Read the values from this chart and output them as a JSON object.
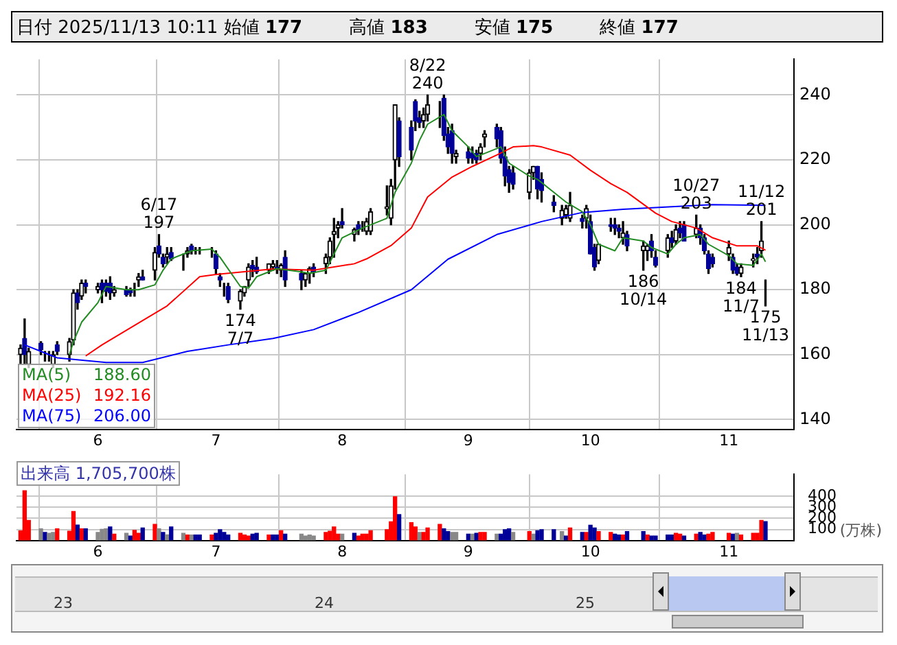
{
  "chart_data": [
    {
      "type": "candlestick",
      "title": "日付 2025/11/13 10:11 始値 177 高値 183 安値 175 終値 177",
      "x": [
        "2025-05-14",
        "2025-05-15",
        "2025-05-16",
        "2025-05-19",
        "2025-05-20",
        "2025-05-21",
        "2025-05-22",
        "2025-05-23",
        "2025-05-26",
        "2025-05-27",
        "2025-05-28",
        "2025-05-29",
        "2025-05-30",
        "2025-06-02",
        "2025-06-03",
        "2025-06-04",
        "2025-06-05",
        "2025-06-06",
        "2025-06-09",
        "2025-06-10",
        "2025-06-11",
        "2025-06-12",
        "2025-06-13",
        "2025-06-16",
        "2025-06-17",
        "2025-06-18",
        "2025-06-19",
        "2025-06-20",
        "2025-06-23",
        "2025-06-24",
        "2025-06-25",
        "2025-06-26",
        "2025-06-27",
        "2025-06-30",
        "2025-07-01",
        "2025-07-02",
        "2025-07-03",
        "2025-07-04",
        "2025-07-07",
        "2025-07-08",
        "2025-07-09",
        "2025-07-10",
        "2025-07-11",
        "2025-07-14",
        "2025-07-15",
        "2025-07-16",
        "2025-07-17",
        "2025-07-18",
        "2025-07-22",
        "2025-07-23",
        "2025-07-24",
        "2025-07-25",
        "2025-07-28",
        "2025-07-29",
        "2025-07-30",
        "2025-07-31",
        "2025-08-01",
        "2025-08-04",
        "2025-08-05",
        "2025-08-06",
        "2025-08-07",
        "2025-08-08",
        "2025-08-12",
        "2025-08-13",
        "2025-08-14",
        "2025-08-15",
        "2025-08-18",
        "2025-08-19",
        "2025-08-20",
        "2025-08-21",
        "2025-08-22",
        "2025-08-25",
        "2025-08-26",
        "2025-08-27",
        "2025-08-28",
        "2025-08-29",
        "2025-09-01",
        "2025-09-02",
        "2025-09-03",
        "2025-09-04",
        "2025-09-05",
        "2025-09-08",
        "2025-09-09",
        "2025-09-10",
        "2025-09-11",
        "2025-09-12",
        "2025-09-16",
        "2025-09-17",
        "2025-09-18",
        "2025-09-19",
        "2025-09-22",
        "2025-09-24",
        "2025-09-25",
        "2025-09-26",
        "2025-09-29",
        "2025-09-30",
        "2025-10-01",
        "2025-10-02",
        "2025-10-03",
        "2025-10-06",
        "2025-10-07",
        "2025-10-08",
        "2025-10-09",
        "2025-10-10",
        "2025-10-14",
        "2025-10-15",
        "2025-10-16",
        "2025-10-17",
        "2025-10-20",
        "2025-10-21",
        "2025-10-22",
        "2025-10-23",
        "2025-10-24",
        "2025-10-27",
        "2025-10-28",
        "2025-10-29",
        "2025-10-30",
        "2025-10-31",
        "2025-11-04",
        "2025-11-05",
        "2025-11-06",
        "2025-11-07",
        "2025-11-10",
        "2025-11-11",
        "2025-11-12",
        "2025-11-13"
      ],
      "ohlc": [
        [
          160,
          163,
          157,
          162
        ],
        [
          165,
          171,
          157,
          160
        ],
        [
          157,
          162,
          156,
          161
        ],
        [
          163.5,
          164,
          160,
          161.5
        ],
        [
          160,
          161,
          158,
          160
        ],
        [
          160,
          161,
          158,
          160
        ],
        [
          157,
          161,
          156,
          160
        ],
        [
          163,
          164,
          160,
          161
        ],
        [
          160,
          165,
          158,
          164
        ],
        [
          164.5,
          180,
          163,
          179
        ],
        [
          179,
          180,
          174,
          176
        ],
        [
          178,
          183,
          177,
          182
        ],
        [
          182,
          183,
          179,
          181
        ],
        [
          180,
          182,
          179,
          181
        ],
        [
          182,
          183,
          176,
          180
        ],
        [
          182,
          183,
          178,
          179.5
        ],
        [
          182,
          184,
          177,
          179
        ],
        [
          179,
          181,
          178,
          180
        ],
        [
          180,
          181,
          178,
          178.5
        ],
        [
          180,
          180.5,
          178,
          179
        ],
        [
          180,
          182,
          178,
          180
        ],
        [
          183,
          185,
          181,
          184
        ],
        [
          184,
          186,
          183,
          183
        ],
        [
          186,
          193,
          183,
          191.5
        ],
        [
          193.5,
          197,
          190,
          191
        ],
        [
          190,
          191,
          187,
          188
        ],
        [
          190,
          193,
          188,
          191
        ],
        [
          191.5,
          193,
          189,
          189.5
        ],
        [
          190,
          191,
          186,
          190
        ],
        [
          191,
          193,
          190,
          192
        ],
        [
          193.5,
          194,
          191,
          192
        ],
        [
          192,
          193,
          191,
          192
        ],
        [
          192,
          193,
          191,
          192
        ],
        [
          192,
          193,
          190,
          192
        ],
        [
          191,
          192,
          185,
          186.5
        ],
        [
          184,
          185,
          181,
          183
        ],
        [
          180,
          182,
          178,
          180
        ],
        [
          181,
          182,
          176,
          177
        ],
        [
          176.5,
          180,
          174,
          179.5
        ],
        [
          179,
          181,
          178,
          181
        ],
        [
          183,
          188,
          181,
          187
        ],
        [
          187.5,
          189,
          184,
          186.5
        ],
        [
          187,
          190,
          185,
          185.5
        ],
        [
          186,
          188,
          185,
          188
        ],
        [
          187,
          189,
          186,
          188
        ],
        [
          187,
          189,
          185,
          186.5
        ],
        [
          186,
          188,
          184,
          187.5
        ],
        [
          190,
          192,
          181,
          183
        ],
        [
          185,
          186,
          180,
          183
        ],
        [
          183,
          185,
          181,
          185
        ],
        [
          185,
          187,
          182,
          186.5
        ],
        [
          187,
          188,
          184,
          185.5
        ],
        [
          188,
          191,
          185,
          190
        ],
        [
          190,
          196,
          188,
          195
        ],
        [
          197,
          202,
          190,
          198
        ],
        [
          199,
          201,
          196,
          200
        ],
        [
          201,
          205,
          199,
          200
        ],
        [
          197,
          199,
          195,
          198.5
        ],
        [
          200,
          201,
          197,
          198.5
        ],
        [
          200,
          201,
          198,
          200
        ],
        [
          198,
          202,
          197,
          201
        ],
        [
          198,
          205,
          197,
          204
        ],
        [
          205,
          212,
          203,
          205.5
        ],
        [
          202,
          214,
          200,
          212
        ],
        [
          220,
          237,
          211,
          237
        ],
        [
          232,
          233,
          218,
          221
        ],
        [
          230,
          232,
          220,
          223
        ],
        [
          238,
          238.5,
          229,
          232
        ],
        [
          233,
          235,
          230,
          231.5
        ],
        [
          232,
          236,
          230,
          234
        ],
        [
          234,
          240,
          232,
          237
        ],
        [
          236,
          238,
          230,
          236
        ],
        [
          239,
          240,
          226,
          227.5
        ],
        [
          228,
          230,
          222,
          224
        ],
        [
          229,
          231,
          219,
          222
        ],
        [
          221,
          223,
          219,
          222
        ],
        [
          222.5,
          224,
          219,
          220.5
        ],
        [
          222,
          224,
          219,
          220.5
        ],
        [
          222,
          223,
          219,
          220
        ],
        [
          222,
          225,
          220,
          224
        ],
        [
          227,
          229,
          224,
          228
        ],
        [
          230,
          231,
          224,
          226.5
        ],
        [
          229,
          230,
          219,
          220.5
        ],
        [
          221,
          224,
          212,
          215
        ],
        [
          217,
          218,
          210,
          213
        ],
        [
          216,
          218,
          211,
          212.5
        ],
        [
          210,
          217,
          208,
          216
        ],
        [
          216,
          218,
          214,
          218
        ],
        [
          218,
          218,
          208,
          211
        ],
        [
          214,
          216,
          207,
          210.5
        ],
        [
          207,
          209,
          204,
          206
        ],
        [
          202,
          206,
          200,
          204.5
        ],
        [
          203,
          206,
          202,
          205
        ],
        [
          202,
          210,
          201,
          206
        ],
        [
          202,
          203,
          199,
          201
        ],
        [
          202,
          206,
          199,
          205
        ],
        [
          201,
          203,
          191,
          191
        ],
        [
          193,
          194,
          186,
          187
        ],
        [
          189,
          194,
          188,
          194
        ],
        [
          200,
          202,
          198,
          199.5
        ],
        [
          200,
          202,
          197,
          199
        ],
        [
          199,
          200,
          196,
          198
        ],
        [
          196,
          201,
          194,
          197.5
        ],
        [
          197,
          198,
          192,
          193.5
        ],
        [
          192,
          195,
          186,
          193.5
        ],
        [
          192,
          194,
          189,
          193.5
        ],
        [
          195,
          197,
          190,
          192
        ],
        [
          190,
          192,
          187,
          187.5
        ],
        [
          192,
          197,
          190,
          196
        ],
        [
          196,
          198,
          193,
          194.5
        ],
        [
          195,
          200,
          194,
          198.5
        ],
        [
          199,
          201,
          196,
          197.5
        ],
        [
          200,
          201,
          195,
          195
        ],
        [
          197,
          203,
          196,
          199
        ],
        [
          199,
          200,
          194,
          196
        ],
        [
          196,
          197,
          191,
          192
        ],
        [
          191,
          192,
          185,
          186.5
        ],
        [
          190,
          191,
          187,
          188
        ],
        [
          191,
          195,
          189,
          193
        ],
        [
          190,
          191,
          185,
          186
        ],
        [
          187,
          188,
          184.5,
          185
        ],
        [
          185,
          188,
          184,
          187
        ],
        [
          189,
          191,
          187,
          189.5
        ],
        [
          191,
          193,
          188,
          190
        ],
        [
          192,
          201,
          190,
          195
        ],
        [
          177,
          183,
          175,
          177
        ]
      ],
      "series": [
        {
          "name": "MA(5) 188.60",
          "type": "line",
          "color": "#228b22",
          "x": [
            "2025-05-26",
            "2025-05-27",
            "2025-05-29",
            "2025-06-02",
            "2025-06-04",
            "2025-06-09",
            "2025-06-12",
            "2025-06-16",
            "2025-06-18",
            "2025-06-20",
            "2025-06-25",
            "2025-06-30",
            "2025-07-02",
            "2025-07-07",
            "2025-07-09",
            "2025-07-11",
            "2025-07-16",
            "2025-07-22",
            "2025-07-24",
            "2025-07-28",
            "2025-07-30",
            "2025-08-01",
            "2025-08-06",
            "2025-08-12",
            "2025-08-14",
            "2025-08-18",
            "2025-08-20",
            "2025-08-22",
            "2025-08-26",
            "2025-08-28",
            "2025-09-01",
            "2025-09-03",
            "2025-09-05",
            "2025-09-09",
            "2025-09-11",
            "2025-09-16",
            "2025-09-18",
            "2025-09-22",
            "2025-09-25",
            "2025-09-29",
            "2025-10-01",
            "2025-10-03",
            "2025-10-07",
            "2025-10-09",
            "2025-10-14",
            "2025-10-16",
            "2025-10-20",
            "2025-10-22",
            "2025-10-24",
            "2025-10-28",
            "2025-10-30",
            "2025-11-04",
            "2025-11-06",
            "2025-11-10",
            "2025-11-12",
            "2025-11-13"
          ],
          "values": [
            160,
            164,
            170,
            176,
            181,
            180,
            180,
            181.5,
            186,
            189.5,
            192,
            192.5,
            190,
            181,
            180.5,
            184,
            186.5,
            185.5,
            185,
            186,
            191,
            196,
            199,
            202,
            210,
            219,
            226,
            231,
            234,
            229,
            224,
            221,
            222,
            224,
            219,
            215,
            214,
            210,
            207,
            204,
            200,
            194,
            192,
            196,
            195,
            193,
            191,
            194,
            196,
            197,
            194,
            190.5,
            188,
            187.5,
            191,
            188.6
          ]
        },
        {
          "name": "MA(25) 192.16",
          "type": "line",
          "color": "#ff0000",
          "x": [
            "2025-05-30",
            "2025-06-03",
            "2025-06-13",
            "2025-06-19",
            "2025-06-27",
            "2025-07-01",
            "2025-07-15",
            "2025-07-25",
            "2025-08-04",
            "2025-08-07",
            "2025-08-13",
            "2025-08-18",
            "2025-08-22",
            "2025-08-28",
            "2025-09-02",
            "2025-09-08",
            "2025-09-12",
            "2025-09-17",
            "2025-09-19",
            "2025-09-26",
            "2025-10-01",
            "2025-10-06",
            "2025-10-10",
            "2025-10-17",
            "2025-10-21",
            "2025-10-27",
            "2025-10-31",
            "2025-11-06",
            "2025-11-11",
            "2025-11-13"
          ],
          "values": [
            159.6,
            163,
            170.5,
            175,
            184,
            184.7,
            186.4,
            186,
            188,
            189.5,
            193.6,
            199,
            208.6,
            214.7,
            218,
            221.5,
            224,
            224.4,
            224,
            221.5,
            216.8,
            212.7,
            210,
            203.6,
            201,
            199,
            196,
            193.5,
            193.5,
            192.16
          ]
        },
        {
          "name": "MA(75) 206.00",
          "type": "line",
          "color": "#0000ff",
          "x": [
            "2025-05-15",
            "2025-05-23",
            "2025-06-04",
            "2025-06-13",
            "2025-06-24",
            "2025-07-04",
            "2025-07-15",
            "2025-07-25",
            "2025-08-05",
            "2025-08-18",
            "2025-08-27",
            "2025-09-08",
            "2025-09-19",
            "2025-09-29",
            "2025-10-09",
            "2025-10-21",
            "2025-10-31",
            "2025-11-13"
          ],
          "values": [
            163,
            159,
            157.6,
            157.6,
            161,
            163,
            165,
            167.7,
            173,
            180,
            189.4,
            197,
            201,
            203.8,
            204.8,
            205.6,
            206.2,
            206
          ]
        }
      ],
      "xlim": [
        "2025-05-13",
        "2025-11-20"
      ],
      "ylim": [
        137,
        251
      ],
      "yticks": [
        140,
        160,
        180,
        200,
        220,
        240
      ],
      "xticks": [
        {
          "value": "2025-06-02",
          "label": "6"
        },
        {
          "value": "2025-07-01",
          "label": "7"
        },
        {
          "value": "2025-08-01",
          "label": "8"
        },
        {
          "value": "2025-09-01",
          "label": "9"
        },
        {
          "value": "2025-10-01",
          "label": "10"
        },
        {
          "value": "2025-11-04",
          "label": "11"
        }
      ],
      "grid": true,
      "legend": "bottom left",
      "annotations": [
        {
          "text": "6/17\n197",
          "x": "2025-06-17",
          "y": 197
        },
        {
          "text": "174\n7/7",
          "x": "2025-07-07",
          "y": 174
        },
        {
          "text": "8/22\n240",
          "x": "2025-08-22",
          "y": 240
        },
        {
          "text": "186\n10/14",
          "x": "2025-10-14",
          "y": 186
        },
        {
          "text": "10/27\n203",
          "x": "2025-10-27",
          "y": 203
        },
        {
          "text": "184\n11/7",
          "x": "2025-11-07",
          "y": 184
        },
        {
          "text": "11/12\n201",
          "x": "2025-11-12",
          "y": 201
        },
        {
          "text": "175\n11/13",
          "x": "2025-11-13",
          "y": 175
        }
      ]
    },
    {
      "type": "bar",
      "title": "出来高 1,705,700株",
      "ylabel": "(万株)",
      "x": [
        "2025-05-14",
        "2025-05-15",
        "2025-05-16",
        "2025-05-19",
        "2025-05-20",
        "2025-05-21",
        "2025-05-22",
        "2025-05-23",
        "2025-05-26",
        "2025-05-27",
        "2025-05-28",
        "2025-05-29",
        "2025-05-30",
        "2025-06-02",
        "2025-06-03",
        "2025-06-04",
        "2025-06-05",
        "2025-06-06",
        "2025-06-09",
        "2025-06-10",
        "2025-06-11",
        "2025-06-12",
        "2025-06-13",
        "2025-06-16",
        "2025-06-17",
        "2025-06-18",
        "2025-06-19",
        "2025-06-20",
        "2025-06-23",
        "2025-06-24",
        "2025-06-25",
        "2025-06-26",
        "2025-06-27",
        "2025-06-30",
        "2025-07-01",
        "2025-07-02",
        "2025-07-03",
        "2025-07-04",
        "2025-07-07",
        "2025-07-08",
        "2025-07-09",
        "2025-07-10",
        "2025-07-11",
        "2025-07-14",
        "2025-07-15",
        "2025-07-16",
        "2025-07-17",
        "2025-07-18",
        "2025-07-22",
        "2025-07-23",
        "2025-07-24",
        "2025-07-25",
        "2025-07-28",
        "2025-07-29",
        "2025-07-30",
        "2025-07-31",
        "2025-08-01",
        "2025-08-04",
        "2025-08-05",
        "2025-08-06",
        "2025-08-07",
        "2025-08-08",
        "2025-08-12",
        "2025-08-13",
        "2025-08-14",
        "2025-08-15",
        "2025-08-18",
        "2025-08-19",
        "2025-08-20",
        "2025-08-21",
        "2025-08-22",
        "2025-08-25",
        "2025-08-26",
        "2025-08-27",
        "2025-08-28",
        "2025-08-29",
        "2025-09-01",
        "2025-09-02",
        "2025-09-03",
        "2025-09-04",
        "2025-09-05",
        "2025-09-08",
        "2025-09-09",
        "2025-09-10",
        "2025-09-11",
        "2025-09-12",
        "2025-09-16",
        "2025-09-17",
        "2025-09-18",
        "2025-09-19",
        "2025-09-22",
        "2025-09-24",
        "2025-09-25",
        "2025-09-26",
        "2025-09-29",
        "2025-09-30",
        "2025-10-01",
        "2025-10-02",
        "2025-10-03",
        "2025-10-06",
        "2025-10-07",
        "2025-10-08",
        "2025-10-09",
        "2025-10-10",
        "2025-10-14",
        "2025-10-15",
        "2025-10-16",
        "2025-10-17",
        "2025-10-20",
        "2025-10-21",
        "2025-10-22",
        "2025-10-23",
        "2025-10-24",
        "2025-10-27",
        "2025-10-28",
        "2025-10-29",
        "2025-10-30",
        "2025-10-31",
        "2025-11-04",
        "2025-11-05",
        "2025-11-06",
        "2025-11-07",
        "2025-11-10",
        "2025-11-11",
        "2025-11-12",
        "2025-11-13"
      ],
      "values": [
        86,
        451,
        181,
        105,
        73,
        65,
        73,
        105,
        84,
        262,
        140,
        105,
        105,
        73,
        100,
        105,
        122,
        57,
        65,
        40,
        92,
        65,
        113,
        146,
        105,
        73,
        51,
        122,
        65,
        49,
        49,
        49,
        49,
        49,
        65,
        97,
        73,
        49,
        65,
        49,
        40,
        57,
        65,
        49,
        49,
        49,
        89,
        57,
        57,
        40,
        49,
        40,
        73,
        84,
        122,
        57,
        57,
        65,
        40,
        57,
        57,
        89,
        97,
        170,
        397,
        235,
        162,
        122,
        73,
        73,
        113,
        146,
        105,
        81,
        73,
        73,
        57,
        57,
        65,
        73,
        73,
        57,
        57,
        97,
        105,
        73,
        81,
        57,
        89,
        97,
        97,
        81,
        40,
        113,
        73,
        73,
        138,
        113,
        81,
        73,
        57,
        49,
        49,
        81,
        81,
        49,
        40,
        40,
        49,
        49,
        65,
        57,
        40,
        57,
        73,
        49,
        57,
        73,
        65,
        57,
        65,
        49,
        65,
        65,
        181,
        170.57
      ],
      "colors": [
        "#ff0000",
        "#ff0000",
        "#ff0000",
        "#888888",
        "#000099",
        "#888888",
        "#888888",
        "#ff0000",
        "#ff0000",
        "#ff0000",
        "#000099",
        "#ff0000",
        "#000099",
        "#888888",
        "#888888",
        "#888888",
        "#000099",
        "#ff0000",
        "#888888",
        "#000099",
        "#ff0000",
        "#ff0000",
        "#000099",
        "#ff0000",
        "#888888",
        "#000099",
        "#888888",
        "#000099",
        "#888888",
        "#ff0000",
        "#888888",
        "#000099",
        "#000099",
        "#ff0000",
        "#000099",
        "#000099",
        "#000099",
        "#000099",
        "#ff0000",
        "#ff0000",
        "#ff0000",
        "#000099",
        "#000099",
        "#ff0000",
        "#000099",
        "#000099",
        "#ff0000",
        "#000099",
        "#888888",
        "#888888",
        "#888888",
        "#888888",
        "#ff0000",
        "#ff0000",
        "#ff0000",
        "#ff0000",
        "#888888",
        "#000099",
        "#ff0000",
        "#ff0000",
        "#ff0000",
        "#ff0000",
        "#ff0000",
        "#ff0000",
        "#ff0000",
        "#000099",
        "#ff0000",
        "#ff0000",
        "#888888",
        "#ff0000",
        "#ff0000",
        "#ff0000",
        "#000099",
        "#000099",
        "#888888",
        "#888888",
        "#000099",
        "#888888",
        "#000099",
        "#ff0000",
        "#ff0000",
        "#888888",
        "#000099",
        "#000099",
        "#000099",
        "#888888",
        "#ff0000",
        "#888888",
        "#000099",
        "#000099",
        "#000099",
        "#888888",
        "#000099",
        "#ff0000",
        "#000099",
        "#ff0000",
        "#000099",
        "#000099",
        "#ff0000",
        "#ff0000",
        "#000099",
        "#000099",
        "#ff0000",
        "#000099",
        "#000099",
        "#ff0000",
        "#000099",
        "#000099",
        "#000099",
        "#000099",
        "#ff0000",
        "#ff0000",
        "#000099",
        "#ff0000",
        "#000099",
        "#000099",
        "#ff0000",
        "#ff0000",
        "#ff0000",
        "#000099",
        "#888888",
        "#ff0000",
        "#ff0000",
        "#ff0000",
        "#ff0000",
        "#000099"
      ],
      "xlim": [
        "2025-05-13",
        "2025-11-20"
      ],
      "ylim": [
        0,
        600
      ],
      "yticks": [
        100,
        200,
        300,
        400
      ],
      "xticks": [
        {
          "value": "2025-06-02",
          "label": "6"
        },
        {
          "value": "2025-07-01",
          "label": "7"
        },
        {
          "value": "2025-08-01",
          "label": "8"
        },
        {
          "value": "2025-09-01",
          "label": "9"
        },
        {
          "value": "2025-10-01",
          "label": "10"
        },
        {
          "value": "2025-11-04",
          "label": "11"
        }
      ],
      "grid": true
    },
    {
      "type": "other",
      "annotations": [
        "23",
        "24",
        "25"
      ]
    }
  ]
}
